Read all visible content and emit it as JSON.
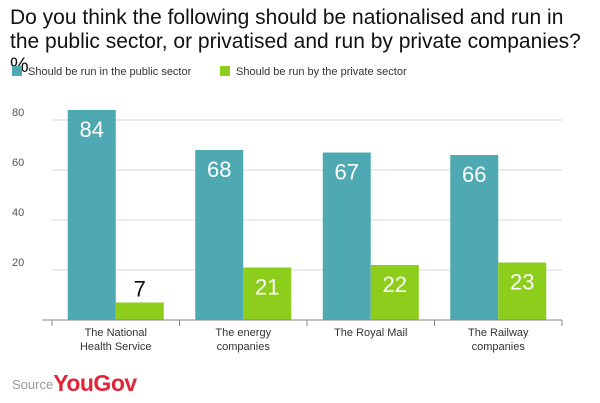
{
  "colors": {
    "public": "#4fa9b3",
    "private": "#8dcd1b",
    "axis": "#888888",
    "grid": "#d8d8d8"
  },
  "source": {
    "label": "Source",
    "brand": "YouGov"
  },
  "chart_data": {
    "type": "bar",
    "title": "Do you think the following should be nationalised and run in the public sector, or privatised and run by private companies? %",
    "categories": [
      [
        "The National",
        "Health Service"
      ],
      [
        "The energy",
        "companies"
      ],
      [
        "The Royal Mail"
      ],
      [
        "The Railway",
        "companies"
      ]
    ],
    "series": [
      {
        "name": "Should be run in the public sector",
        "values": [
          84,
          68,
          67,
          66
        ]
      },
      {
        "name": "Should be run by the private sector",
        "values": [
          7,
          21,
          22,
          23
        ]
      }
    ],
    "yticks": [
      20,
      40,
      60,
      80
    ],
    "ylim": [
      0,
      85
    ],
    "legend": "top-left",
    "grid": false
  }
}
